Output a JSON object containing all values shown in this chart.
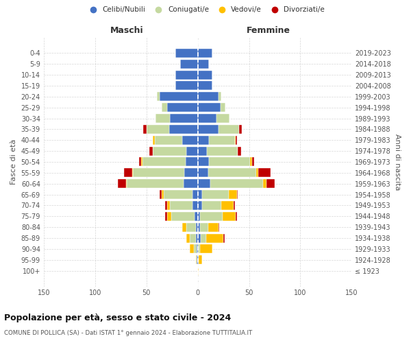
{
  "age_groups": [
    "0-4",
    "5-9",
    "10-14",
    "15-19",
    "20-24",
    "25-29",
    "30-34",
    "35-39",
    "40-44",
    "45-49",
    "50-54",
    "55-59",
    "60-64",
    "65-69",
    "70-74",
    "75-79",
    "80-84",
    "85-89",
    "90-94",
    "95-99",
    "100+"
  ],
  "birth_years": [
    "2019-2023",
    "2014-2018",
    "2009-2013",
    "2004-2008",
    "1999-2003",
    "1994-1998",
    "1989-1993",
    "1984-1988",
    "1979-1983",
    "1974-1978",
    "1969-1973",
    "1964-1968",
    "1959-1963",
    "1954-1958",
    "1949-1953",
    "1944-1948",
    "1939-1943",
    "1934-1938",
    "1929-1933",
    "1924-1928",
    "≤ 1923"
  ],
  "maschi": {
    "celibi": [
      22,
      17,
      22,
      22,
      37,
      30,
      27,
      28,
      15,
      11,
      12,
      13,
      14,
      5,
      5,
      3,
      2,
      2,
      1,
      1,
      0
    ],
    "coniugati": [
      0,
      0,
      0,
      0,
      3,
      5,
      14,
      22,
      27,
      33,
      42,
      50,
      55,
      28,
      22,
      23,
      9,
      6,
      3,
      0,
      0
    ],
    "vedovi": [
      0,
      0,
      0,
      0,
      0,
      0,
      0,
      0,
      2,
      0,
      1,
      1,
      1,
      2,
      3,
      4,
      4,
      3,
      4,
      1,
      0
    ],
    "divorziati": [
      0,
      0,
      0,
      0,
      0,
      0,
      0,
      3,
      0,
      3,
      2,
      8,
      8,
      2,
      2,
      2,
      0,
      0,
      0,
      0,
      0
    ]
  },
  "femmine": {
    "nubili": [
      14,
      11,
      14,
      14,
      20,
      22,
      18,
      20,
      11,
      9,
      11,
      10,
      12,
      4,
      4,
      2,
      2,
      3,
      0,
      1,
      0
    ],
    "coniugate": [
      0,
      0,
      0,
      0,
      3,
      5,
      13,
      20,
      25,
      30,
      40,
      47,
      52,
      26,
      19,
      22,
      8,
      5,
      2,
      0,
      0
    ],
    "vedove": [
      0,
      0,
      0,
      0,
      0,
      0,
      0,
      0,
      1,
      0,
      2,
      2,
      3,
      8,
      12,
      13,
      10,
      17,
      12,
      3,
      1
    ],
    "divorziate": [
      0,
      0,
      0,
      0,
      0,
      0,
      0,
      3,
      1,
      3,
      2,
      12,
      8,
      1,
      1,
      1,
      1,
      1,
      0,
      0,
      0
    ]
  },
  "colors": {
    "celibi_nubili": "#4472c4",
    "coniugati": "#c5d9a0",
    "vedovi": "#ffc000",
    "divorziati": "#c00000"
  },
  "xlim": 150,
  "title": "Popolazione per età, sesso e stato civile - 2024",
  "subtitle": "COMUNE DI POLLICA (SA) - Dati ISTAT 1° gennaio 2024 - Elaborazione TUTTITALIA.IT",
  "ylabel_left": "Fasce di età",
  "ylabel_right": "Anni di nascita",
  "xlabel_maschi": "Maschi",
  "xlabel_femmine": "Femmine",
  "legend_labels": [
    "Celibi/Nubili",
    "Coniugati/e",
    "Vedovi/e",
    "Divorziati/e"
  ],
  "bg_color": "#ffffff",
  "grid_color": "#cccccc"
}
